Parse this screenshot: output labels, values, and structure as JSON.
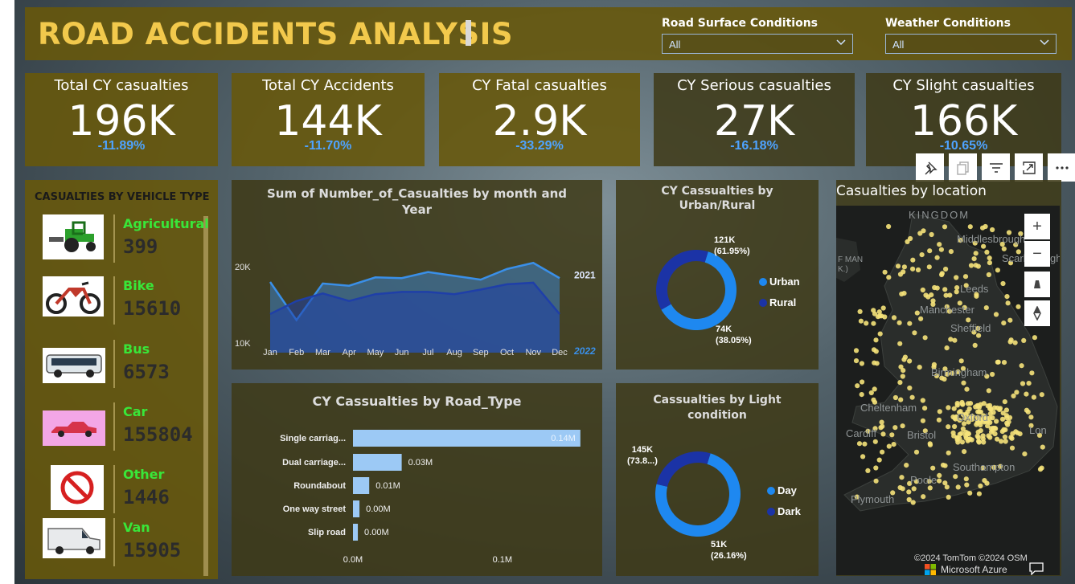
{
  "header": {
    "title": "ROAD ACCIDENTS ANALYSIS"
  },
  "slicers": [
    {
      "label": "Road Surface Conditions",
      "value": "All"
    },
    {
      "label": "Weather Conditions",
      "value": "All"
    }
  ],
  "kpis": [
    {
      "label": "Total CY casualties",
      "value": "196K",
      "delta": "-11.89%"
    },
    {
      "label": "Total CY Accidents",
      "value": "144K",
      "delta": "-11.70%"
    },
    {
      "label": "CY Fatal casualties",
      "value": "2.9K",
      "delta": "-33.29%"
    },
    {
      "label": "CY Serious casualties",
      "value": "27K",
      "delta": "-16.18%"
    },
    {
      "label": "CY Slight casualties",
      "value": "166K",
      "delta": "-10.65%"
    }
  ],
  "vehicles": {
    "title": "CASUALTIES BY VEHICLE TYPE",
    "items": [
      {
        "name": "Agricultural",
        "value": "399",
        "icon": "tractor-icon"
      },
      {
        "name": "Bike",
        "value": "15610",
        "icon": "motorbike-icon"
      },
      {
        "name": "Bus",
        "value": "6573",
        "icon": "bus-icon"
      },
      {
        "name": "Car",
        "value": "155804",
        "icon": "car-icon"
      },
      {
        "name": "Other",
        "value": "1446",
        "icon": "prohibited-icon"
      },
      {
        "name": "Van",
        "value": "15905",
        "icon": "van-icon"
      }
    ]
  },
  "toolbar": [
    "pin-icon",
    "copy-icon",
    "filter-icon",
    "focus-mode-icon",
    "more-options-icon"
  ],
  "map": {
    "title": "Casualties by location",
    "cities": [
      "KINGDOM",
      "Middlesbrough",
      "Scarborough",
      "F MAN",
      "K.)",
      "Leeds",
      "Manchester",
      "Sheffield",
      "Birmingham",
      "Cheltenham",
      "Oxford",
      "Cardiff",
      "Bristol",
      "Lon",
      "Southampton",
      "Poole",
      "Plymouth"
    ],
    "copyright": "©2024 TomTom  ©2024 OSM",
    "provider": "Microsoft Azure",
    "controls": [
      "zoom-in-icon",
      "zoom-out-icon",
      "tilt-icon",
      "compass-icon"
    ]
  },
  "chart_data": [
    {
      "type": "area",
      "title": "Sum of Number_of_Casualties by month and Year",
      "categories": [
        "Jan",
        "Feb",
        "Mar",
        "Apr",
        "May",
        "Jun",
        "Jul",
        "Aug",
        "Sep",
        "Oct",
        "Nov",
        "Dec"
      ],
      "y_ticks": [
        "20K",
        "10K"
      ],
      "ylim": [
        10000,
        20000
      ],
      "series": [
        {
          "name": "2021",
          "color": "#3a8fe8",
          "values": [
            18000,
            13000,
            17800,
            17500,
            18600,
            18500,
            19300,
            18800,
            18300,
            19700,
            20500,
            18500
          ]
        },
        {
          "name": "2022",
          "color": "#1f3fa8",
          "values": [
            13800,
            15500,
            16500,
            15500,
            16400,
            16700,
            16700,
            16400,
            17000,
            17700,
            17900,
            13800
          ]
        }
      ]
    },
    {
      "type": "pie",
      "title": "CY Cassualties by Urban/Rural",
      "labels": [
        "Urban",
        "Rural"
      ],
      "values": [
        121000,
        74000
      ],
      "value_labels": [
        "121K",
        "74K"
      ],
      "percent_labels": [
        "(61.95%)",
        "(38.05%)"
      ],
      "colors": [
        "#1e88f0",
        "#1b33a6"
      ]
    },
    {
      "type": "bar",
      "title": "CY Cassualties by Road_Type",
      "categories": [
        "Single carriag...",
        "Dual carriage...",
        "Roundabout",
        "One way street",
        "Slip road"
      ],
      "values": [
        0.14,
        0.03,
        0.01,
        0.004,
        0.003
      ],
      "value_labels": [
        "0.14M",
        "0.03M",
        "0.01M",
        "0.00M",
        "0.00M"
      ],
      "x_ticks": [
        "0.0M",
        "0.1M"
      ],
      "unit": "M"
    },
    {
      "type": "pie",
      "title": "Cassualties by Light condition",
      "labels": [
        "Day",
        "Dark"
      ],
      "values": [
        145000,
        51000
      ],
      "value_labels": [
        "145K",
        "51K"
      ],
      "percent_labels": [
        "(73.8...)",
        "(26.16%)"
      ],
      "colors": [
        "#1e88f0",
        "#1b33a6"
      ]
    }
  ]
}
